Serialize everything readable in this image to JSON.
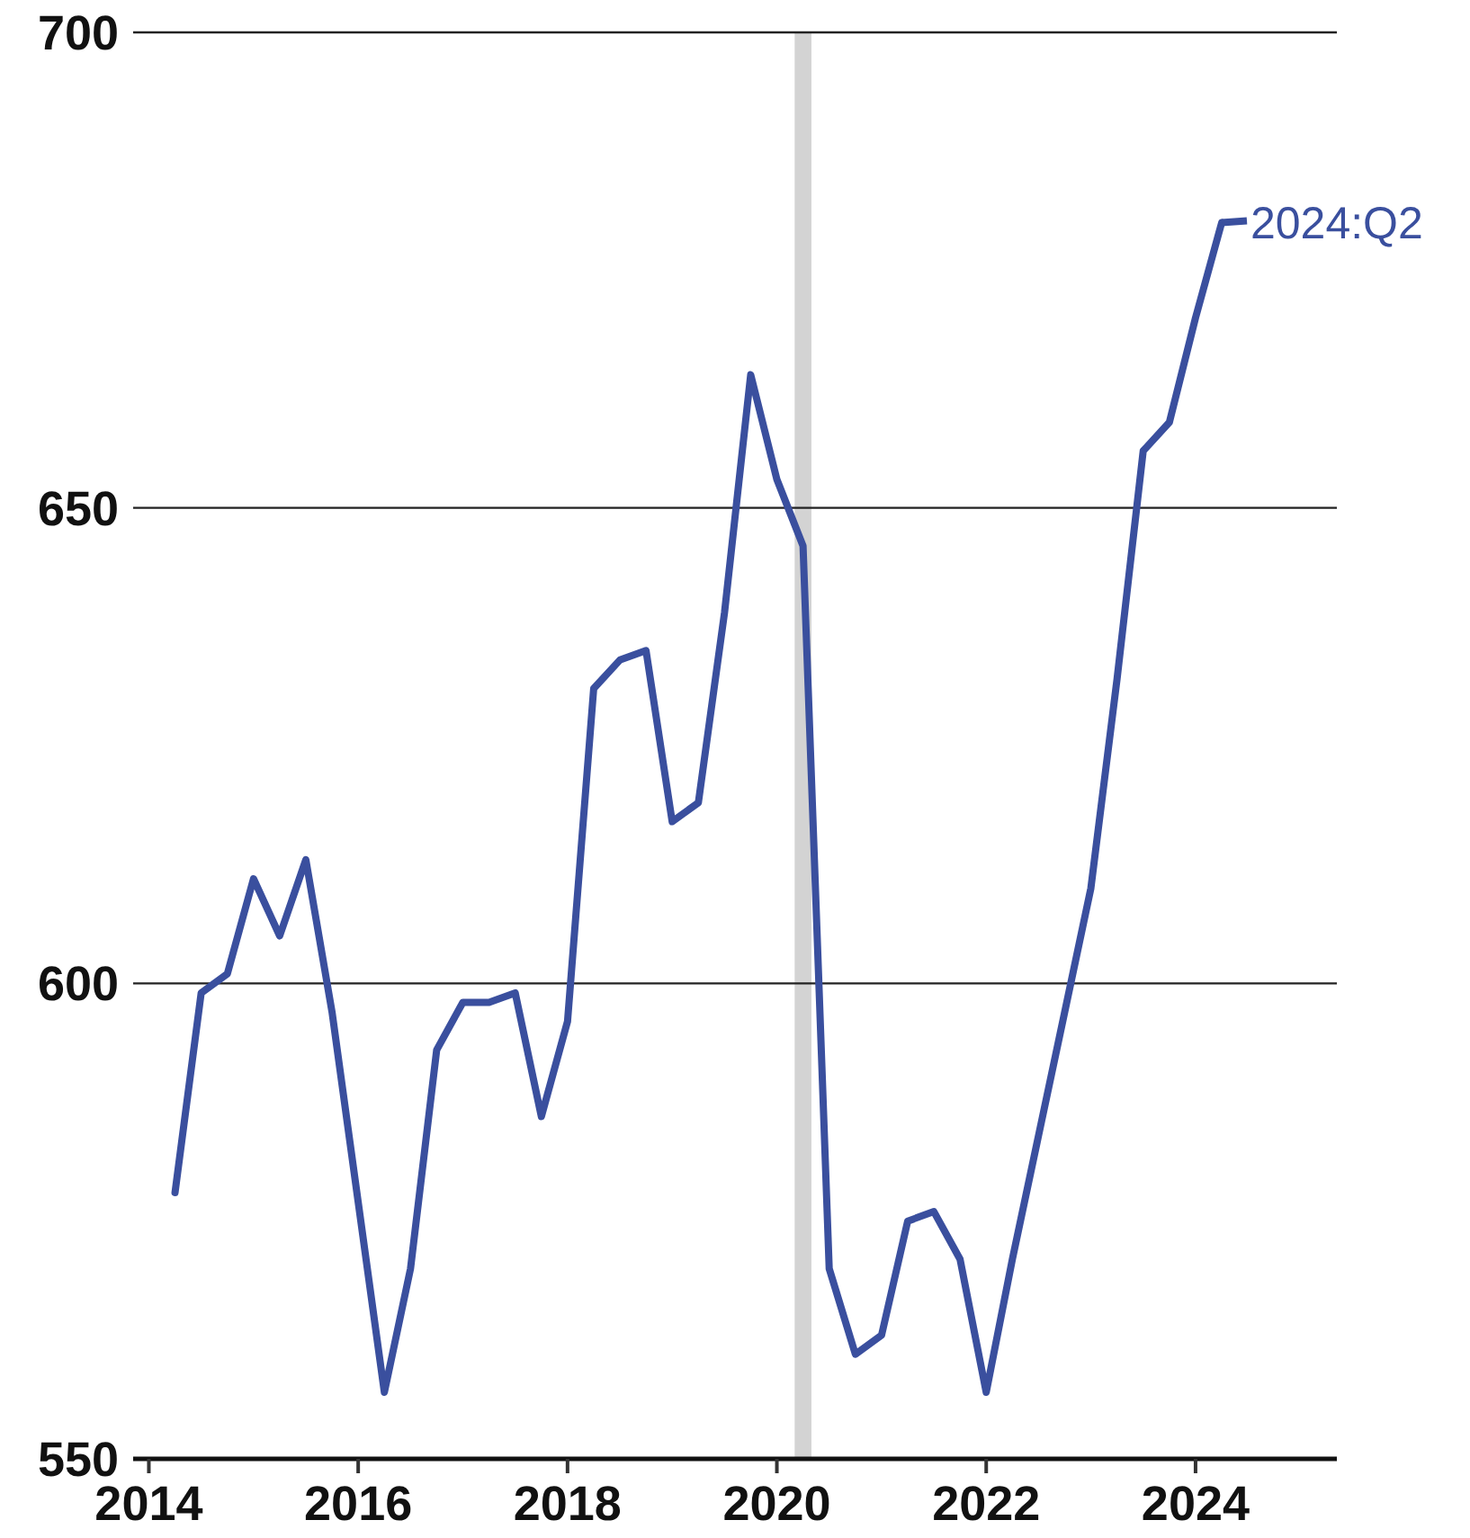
{
  "chart_data": {
    "type": "line",
    "x": [
      2014.25,
      2014.5,
      2014.75,
      2015,
      2015.25,
      2015.5,
      2015.75,
      2016,
      2016.25,
      2016.5,
      2016.75,
      2017,
      2017.25,
      2017.5,
      2017.75,
      2018,
      2018.25,
      2018.5,
      2018.75,
      2019,
      2019.25,
      2019.5,
      2019.75,
      2020,
      2020.25,
      2020.5,
      2020.75,
      2021,
      2021.25,
      2021.5,
      2021.75,
      2022,
      2022.25,
      2022.5,
      2022.75,
      2023,
      2023.25,
      2023.5,
      2023.75,
      2024,
      2024.25
    ],
    "series": [
      {
        "color": "#3a4f9e",
        "values": [
          578,
          599,
          601,
          611,
          605,
          613,
          597,
          577,
          557,
          570,
          593,
          598,
          598,
          599,
          586,
          596,
          631,
          634,
          635,
          617,
          619,
          639,
          664,
          653,
          646,
          570,
          561,
          563,
          575,
          576,
          571,
          557,
          571,
          584,
          597,
          610,
          632,
          656,
          659,
          670,
          680
        ]
      }
    ],
    "xlim": [
      2013.85,
      2025.35
    ],
    "xticks": [
      2014,
      2016,
      2018,
      2020,
      2022,
      2024
    ],
    "ylim": [
      550,
      700
    ],
    "yticks": [
      550,
      600,
      650,
      700
    ],
    "grid": "y",
    "line_style": "solid",
    "marker": "none",
    "bands": [
      {
        "axis": "x",
        "from": 2020.17,
        "to": 2020.33,
        "color": "#d3d3d3"
      }
    ],
    "annotations": [
      {
        "text": "2024:Q2",
        "x": 2024.25,
        "y": 680
      }
    ]
  }
}
